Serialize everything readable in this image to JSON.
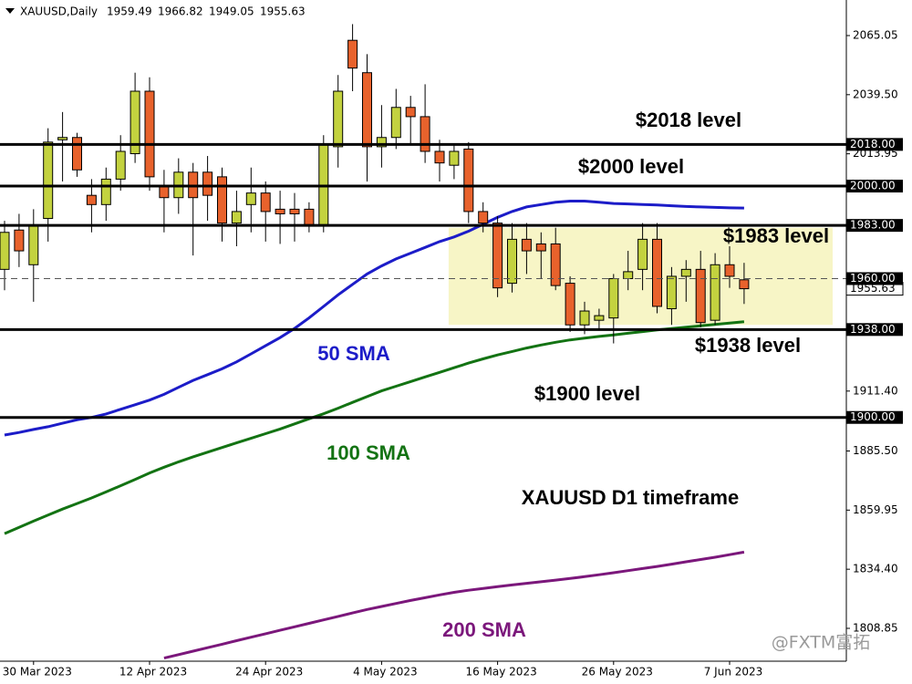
{
  "chart_data": {
    "type": "candlestick",
    "title": "XAUUSD,Daily",
    "categories": [
      null,
      null,
      "30 Mar 2023",
      null,
      null,
      null,
      null,
      null,
      null,
      null,
      "12 Apr 2023",
      null,
      null,
      null,
      null,
      null,
      null,
      null,
      "24 Apr 2023",
      null,
      null,
      null,
      null,
      null,
      null,
      null,
      "4 May 2023",
      null,
      null,
      null,
      null,
      null,
      null,
      null,
      "16 May 2023",
      null,
      null,
      null,
      null,
      null,
      null,
      null,
      "26 May 2023",
      null,
      null,
      null,
      null,
      null,
      null,
      null,
      "7 Jun 2023",
      null
    ],
    "open": [
      1964,
      1981,
      1966,
      1986,
      2020,
      2021,
      1996,
      1992,
      2003,
      2014,
      2041,
      2000,
      1995,
      2006,
      2006,
      2004,
      1984,
      1992,
      1997,
      1990,
      1990,
      1990,
      1983,
      2017,
      2063,
      2049,
      2017,
      2021,
      2034,
      2030,
      2015,
      2009,
      2016,
      1989,
      1984,
      1958,
      1977,
      1975,
      1975,
      1958,
      1940,
      1942,
      1943,
      1960,
      1964,
      1977,
      1947,
      1961,
      1964,
      1942,
      1966,
      1959.49
    ],
    "high": [
      1985,
      1988,
      1990,
      2025,
      2032,
      2023,
      2003,
      2008,
      2022,
      2049,
      2047,
      2007,
      2012,
      2010,
      2013,
      2008,
      1998,
      2008,
      2002,
      1998,
      1997,
      1993,
      2022,
      2048,
      2070,
      2057,
      2035,
      2042,
      2039,
      2044,
      2020,
      2018,
      2019,
      1993,
      1987,
      1984,
      1984,
      1980,
      1982,
      1961,
      1950,
      1947,
      1962,
      1972,
      1984,
      1984,
      1965,
      1968,
      1972,
      1971,
      1974,
      1966.82
    ],
    "low": [
      1955,
      1965,
      1950,
      1976,
      2002,
      2004,
      1980,
      1985,
      1998,
      2010,
      1998,
      1980,
      1988,
      1970,
      1985,
      1976,
      1974,
      1980,
      1976,
      1975,
      1976,
      1980,
      1980,
      2008,
      2041,
      2002,
      2008,
      2016,
      2018,
      2010,
      2002,
      2003,
      1984,
      1980,
      1952,
      1954,
      1962,
      1960,
      1955,
      1937,
      1936,
      1938,
      1932,
      1955,
      1955,
      1945,
      1940,
      1950,
      1939,
      1940,
      1956,
      1949.05
    ],
    "close": [
      1980,
      1972,
      1983,
      2019,
      2021,
      2007,
      1992,
      2003,
      2015,
      2041,
      2004,
      1995,
      2006,
      1995,
      1996,
      1984,
      1989,
      1997,
      1989,
      1988,
      1988,
      1983,
      2018,
      2041,
      2051,
      2017,
      2021,
      2034,
      2030,
      2015,
      2010,
      2015,
      1989,
      1984,
      1956,
      1977,
      1972,
      1972,
      1957,
      1940,
      1946,
      1944,
      1960,
      1963,
      1977,
      1948,
      1961,
      1964,
      1941,
      1966,
      1961,
      1955.63
    ],
    "up_color": "#c3d23f",
    "down_color": "#e8622c",
    "series": [
      {
        "name": "50 SMA",
        "color": "#1c1cc8",
        "values": [
          1892.4,
          1893.5,
          1894.8,
          1896,
          1897.5,
          1899,
          1900,
          1901.5,
          1903.5,
          1905.5,
          1907.5,
          1910,
          1913,
          1916,
          1918.5,
          1921,
          1924,
          1927.5,
          1931,
          1934.5,
          1938.5,
          1943,
          1948,
          1953,
          1957.5,
          1962,
          1965.5,
          1968.5,
          1971,
          1973.5,
          1976,
          1978,
          1980.5,
          1983.5,
          1986.5,
          1989,
          1991,
          1992,
          1993,
          1993.5,
          1993.5,
          1993,
          1992.5,
          1992.3,
          1992,
          1991.8,
          1991.5,
          1991.2,
          1991,
          1990.8,
          1990.6,
          1990.5
        ]
      },
      {
        "name": "100 SMA",
        "color": "#137313",
        "values": [
          1849.8,
          1852.5,
          1855.2,
          1857.8,
          1860.4,
          1862.8,
          1865.2,
          1867.8,
          1870.5,
          1873.2,
          1876,
          1878.5,
          1880.8,
          1883,
          1885,
          1887,
          1889,
          1891,
          1893,
          1895,
          1897.2,
          1899.4,
          1901.6,
          1904,
          1906.5,
          1909,
          1911.5,
          1913.5,
          1915.5,
          1917.5,
          1919.5,
          1921.5,
          1923.5,
          1925.3,
          1927,
          1928.5,
          1930,
          1931.3,
          1932.5,
          1933.5,
          1934.3,
          1935,
          1935.7,
          1936.4,
          1937.1,
          1937.8,
          1938.4,
          1939,
          1939.6,
          1940.2,
          1940.8,
          1941.4
        ]
      },
      {
        "name": "200 SMA",
        "color": "#7b177b",
        "values": [
          null,
          null,
          null,
          null,
          null,
          null,
          null,
          null,
          null,
          null,
          null,
          1796,
          1797.5,
          1799,
          1800.5,
          1802,
          1803.5,
          1805,
          1806.5,
          1808,
          1809.5,
          1811,
          1812.5,
          1814,
          1815.5,
          1817,
          1818.3,
          1819.6,
          1820.9,
          1822.1,
          1823.3,
          1824.4,
          1825.3,
          1826.1,
          1826.9,
          1827.6,
          1828.3,
          1829,
          1829.7,
          1830.4,
          1831.2,
          1832,
          1832.9,
          1833.8,
          1834.7,
          1835.6,
          1836.6,
          1837.6,
          1838.6,
          1839.6,
          1840.7,
          1841.8
        ]
      }
    ],
    "levels": [
      {
        "value": 2018,
        "label": "2018.00",
        "annotation": "$2018 level"
      },
      {
        "value": 2000,
        "label": "2000.00",
        "annotation": "$2000 level"
      },
      {
        "value": 1983,
        "label": "1983.00",
        "annotation": "$1983 level"
      },
      {
        "value": 1960,
        "label": "1960.00",
        "style": "dashed"
      },
      {
        "value": 1938,
        "label": "1938.00",
        "annotation": "$1938 level"
      },
      {
        "value": 1900,
        "label": "1900.00",
        "annotation": "$1900 level"
      }
    ],
    "zone": {
      "top": 1982,
      "bottom": 1940,
      "color": "#f7f5c6"
    },
    "annotation": "XAUUSD D1 timeframe",
    "watermark": "@FXTM富拓",
    "ylim": [
      1794.65,
      2080.42
    ],
    "yticks": [
      2065.05,
      {
        "value": 2039.5,
        "label": "2039.50"
      },
      2013.95,
      {
        "value": 1911.4,
        "label": "1911.40"
      },
      {
        "value": 1885.5,
        "label": "1885.50"
      },
      1859.95,
      {
        "value": 1834.4,
        "label": "1834.40"
      },
      1808.85
    ],
    "grid": false
  }
}
